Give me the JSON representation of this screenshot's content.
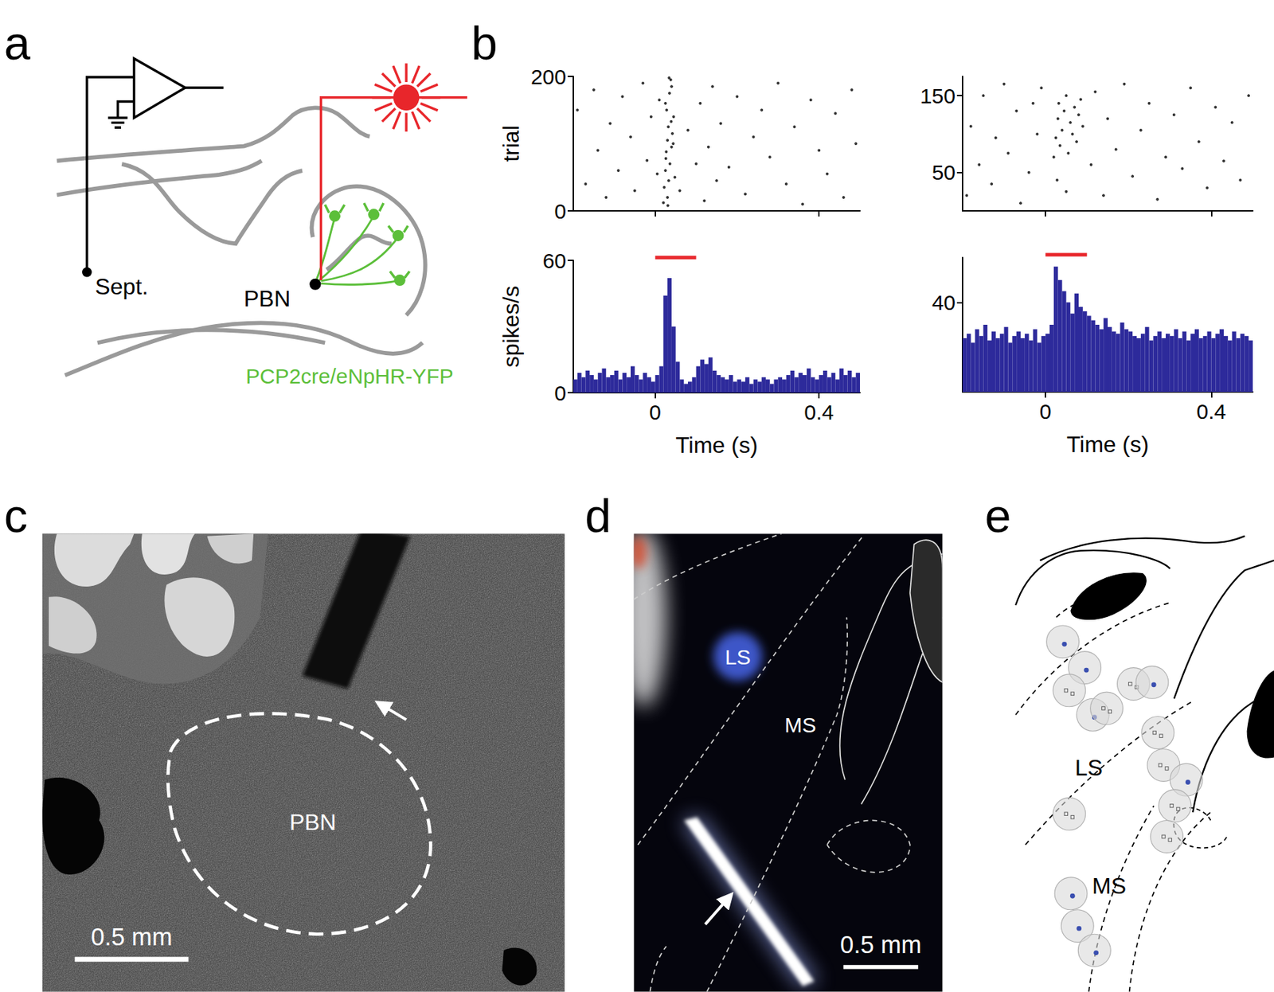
{
  "panel_letters": [
    "a",
    "b",
    "c",
    "d",
    "e"
  ],
  "panel_a": {
    "electrode_site": "Sept.",
    "laser_site": "PBN",
    "genotype": "PCP2cre/eNpHR-YFP"
  },
  "chart_data": [
    {
      "type": "scatter",
      "y_label": "trial",
      "color": "#000000",
      "marker": "circle",
      "x": [
        -0.19,
        -0.17,
        -0.15,
        -0.14,
        -0.12,
        -0.11,
        -0.09,
        -0.08,
        -0.06,
        -0.05,
        -0.03,
        -0.02,
        -0.01,
        0.005,
        0.01,
        0.02,
        0.022,
        0.025,
        0.027,
        0.03,
        0.032,
        0.028,
        0.035,
        0.038,
        0.03,
        0.033,
        0.036,
        0.04,
        0.042,
        0.045,
        0.025,
        0.04,
        0.031,
        0.026,
        0.039,
        0.034,
        0.048,
        0.044,
        0.06,
        0.08,
        0.1,
        0.11,
        0.12,
        0.13,
        0.14,
        0.15,
        0.16,
        0.18,
        0.2,
        0.22,
        0.24,
        0.26,
        0.28,
        0.3,
        0.32,
        0.34,
        0.36,
        0.38,
        0.4,
        0.42,
        0.44,
        0.46,
        0.48,
        0.49
      ],
      "values": [
        150,
        40,
        180,
        90,
        20,
        130,
        60,
        170,
        110,
        30,
        190,
        75,
        140,
        55,
        165,
        12,
        35,
        60,
        88,
        105,
        125,
        150,
        175,
        195,
        20,
        45,
        70,
        95,
        115,
        140,
        160,
        185,
        8,
        78,
        133,
        198,
        50,
        100,
        30,
        120,
        70,
        160,
        15,
        95,
        185,
        45,
        130,
        65,
        170,
        25,
        110,
        150,
        80,
        190,
        40,
        125,
        10,
        165,
        90,
        55,
        145,
        20,
        180,
        100
      ],
      "xlim": [
        -0.2,
        0.5
      ],
      "xticks": [
        0,
        0.4
      ],
      "ylim": [
        0,
        200
      ],
      "yticks": [
        0,
        200
      ],
      "tick_labels": "y",
      "grid": false
    },
    {
      "type": "histogram",
      "x_label": "Time (s)",
      "y_label": "spikes/s",
      "color": "#2d2a9b",
      "bins": [
        -0.2,
        -0.19,
        -0.18,
        -0.17,
        -0.16,
        -0.15,
        -0.14,
        -0.13,
        -0.12,
        -0.11,
        -0.1,
        -0.09,
        -0.08,
        -0.07,
        -0.06,
        -0.05,
        -0.04,
        -0.03,
        -0.02,
        -0.01,
        0,
        0.01,
        0.02,
        0.03,
        0.04,
        0.05,
        0.06,
        0.07,
        0.08,
        0.09,
        0.1,
        0.11,
        0.12,
        0.13,
        0.14,
        0.15,
        0.16,
        0.17,
        0.18,
        0.19,
        0.2,
        0.21,
        0.22,
        0.23,
        0.24,
        0.25,
        0.26,
        0.27,
        0.28,
        0.29,
        0.3,
        0.31,
        0.32,
        0.33,
        0.34,
        0.35,
        0.36,
        0.37,
        0.38,
        0.39,
        0.4,
        0.41,
        0.42,
        0.43,
        0.44,
        0.45,
        0.46,
        0.47,
        0.48,
        0.49,
        0.5
      ],
      "values": [
        6,
        9,
        7,
        10,
        8,
        6,
        9,
        11,
        7,
        8,
        10,
        6,
        9,
        7,
        12,
        8,
        6,
        9,
        7,
        5,
        8,
        12,
        44,
        52,
        30,
        14,
        6,
        4,
        5,
        7,
        12,
        15,
        13,
        16,
        10,
        8,
        7,
        6,
        8,
        5,
        6,
        5,
        7,
        4,
        6,
        5,
        7,
        6,
        4,
        6,
        7,
        6,
        8,
        10,
        7,
        9,
        8,
        11,
        7,
        6,
        8,
        10,
        7,
        9,
        6,
        11,
        8,
        10,
        7,
        9
      ],
      "xlim": [
        -0.2,
        0.5
      ],
      "xticks": [
        0,
        0.4
      ],
      "ylim": [
        0,
        60
      ],
      "yticks": [
        0,
        60
      ],
      "grid": false,
      "stimulus": [
        0,
        0.1
      ],
      "stimulus_color": "#e8262b"
    },
    {
      "type": "scatter",
      "color": "#000000",
      "marker": "circle",
      "x": [
        -0.19,
        -0.18,
        -0.16,
        -0.15,
        -0.13,
        -0.12,
        -0.1,
        -0.09,
        -0.07,
        -0.06,
        -0.04,
        -0.03,
        -0.02,
        -0.01,
        0.02,
        0.025,
        0.03,
        0.032,
        0.035,
        0.04,
        0.045,
        0.05,
        0.055,
        0.06,
        0.065,
        0.07,
        0.075,
        0.08,
        0.085,
        0.09,
        0.028,
        0.05,
        0.11,
        0.12,
        0.14,
        0.15,
        0.17,
        0.19,
        0.21,
        0.23,
        0.25,
        0.27,
        0.29,
        0.31,
        0.33,
        0.35,
        0.37,
        0.39,
        0.41,
        0.43,
        0.45,
        0.47,
        0.49
      ],
      "values": [
        20,
        110,
        60,
        150,
        35,
        95,
        165,
        75,
        130,
        10,
        50,
        140,
        100,
        160,
        70,
        95,
        120,
        140,
        85,
        105,
        130,
        150,
        75,
        115,
        100,
        135,
        90,
        125,
        145,
        110,
        40,
        25,
        60,
        155,
        20,
        120,
        80,
        165,
        45,
        105,
        140,
        15,
        70,
        125,
        55,
        160,
        90,
        30,
        135,
        65,
        115,
        40,
        150
      ],
      "xlim": [
        -0.2,
        0.5
      ],
      "xticks": [
        0,
        0.4
      ],
      "ylim": [
        0,
        175
      ],
      "yticks": [
        50,
        150
      ],
      "tick_labels": "y",
      "grid": false
    },
    {
      "type": "histogram",
      "x_label": "Time (s)",
      "color": "#2d2a9b",
      "bins": [
        -0.2,
        -0.19,
        -0.18,
        -0.17,
        -0.16,
        -0.15,
        -0.14,
        -0.13,
        -0.12,
        -0.11,
        -0.1,
        -0.09,
        -0.08,
        -0.07,
        -0.06,
        -0.05,
        -0.04,
        -0.03,
        -0.02,
        -0.01,
        0,
        0.01,
        0.02,
        0.03,
        0.04,
        0.05,
        0.06,
        0.07,
        0.08,
        0.09,
        0.1,
        0.11,
        0.12,
        0.13,
        0.14,
        0.15,
        0.16,
        0.17,
        0.18,
        0.19,
        0.2,
        0.21,
        0.22,
        0.23,
        0.24,
        0.25,
        0.26,
        0.27,
        0.28,
        0.29,
        0.3,
        0.31,
        0.32,
        0.33,
        0.34,
        0.35,
        0.36,
        0.37,
        0.38,
        0.39,
        0.4,
        0.41,
        0.42,
        0.43,
        0.44,
        0.45,
        0.46,
        0.47,
        0.48,
        0.49,
        0.5
      ],
      "values": [
        24,
        26,
        22,
        28,
        25,
        30,
        23,
        27,
        24,
        26,
        29,
        22,
        25,
        27,
        24,
        26,
        23,
        28,
        22,
        25,
        26,
        30,
        56,
        50,
        45,
        40,
        35,
        44,
        38,
        36,
        34,
        32,
        30,
        28,
        33,
        29,
        27,
        26,
        31,
        28,
        27,
        25,
        24,
        26,
        29,
        23,
        25,
        27,
        24,
        26,
        25,
        28,
        24,
        27,
        23,
        26,
        28,
        24,
        25,
        27,
        24,
        26,
        28,
        25,
        23,
        27,
        24,
        26,
        25,
        23
      ],
      "xlim": [
        -0.2,
        0.5
      ],
      "xticks": [
        0,
        0.4
      ],
      "ylim": [
        0,
        60
      ],
      "yticks": [
        40
      ],
      "grid": false,
      "stimulus": [
        0,
        0.1
      ],
      "stimulus_color": "#e8262b"
    }
  ],
  "panel_c": {
    "region": "PBN",
    "scale_bar": "0.5 mm"
  },
  "panel_d": {
    "regions": [
      "LS",
      "MS"
    ],
    "scale_bar": "0.5 mm"
  },
  "panel_e": {
    "regions": [
      "LS",
      "MS"
    ]
  }
}
